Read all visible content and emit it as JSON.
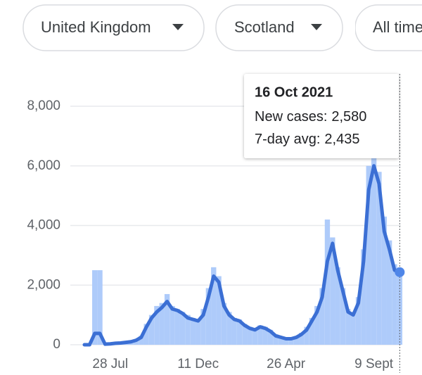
{
  "filters": [
    "United Kingdom",
    "Scotland",
    "All time"
  ],
  "chart_data": {
    "type": "bar-line",
    "tooltip_date": "16 Oct 2021",
    "categories": [
      null,
      null,
      null,
      null,
      null,
      "28 Jul",
      null,
      null,
      null,
      null,
      null,
      null,
      null,
      null,
      null,
      null,
      null,
      null,
      null,
      null,
      null,
      null,
      "11 Dec",
      null,
      null,
      null,
      null,
      null,
      null,
      null,
      null,
      null,
      null,
      null,
      null,
      null,
      null,
      null,
      null,
      "26 Apr",
      null,
      null,
      null,
      null,
      null,
      null,
      null,
      null,
      null,
      null,
      null,
      null,
      null,
      null,
      null,
      null,
      "9 Sept",
      null,
      null,
      null,
      null,
      null
    ],
    "series": [
      {
        "name": "New cases:",
        "kind": "bar",
        "color": "#aecbfa",
        "values": [
          0,
          0,
          2500,
          2500,
          30,
          40,
          60,
          70,
          90,
          120,
          180,
          300,
          700,
          1000,
          1300,
          1400,
          1700,
          1300,
          1200,
          1100,
          1000,
          900,
          850,
          1200,
          1900,
          2600,
          2300,
          1400,
          1100,
          900,
          850,
          700,
          600,
          550,
          650,
          600,
          500,
          350,
          280,
          220,
          230,
          280,
          400,
          600,
          900,
          1300,
          1900,
          4200,
          3600,
          2600,
          1900,
          1200,
          1100,
          1600,
          3200,
          6000,
          6400,
          5800,
          4300,
          3500,
          2700,
          2580
        ],
        "value_labels": [
          null,
          null,
          null,
          null,
          null,
          null,
          null,
          null,
          null,
          null,
          null,
          null,
          null,
          null,
          null,
          null,
          null,
          null,
          null,
          null,
          null,
          null,
          null,
          null,
          null,
          null,
          null,
          null,
          null,
          null,
          null,
          null,
          null,
          null,
          null,
          null,
          null,
          null,
          null,
          null,
          null,
          null,
          null,
          null,
          null,
          null,
          null,
          null,
          null,
          null,
          null,
          null,
          null,
          null,
          null,
          null,
          null,
          null,
          null,
          null,
          null,
          "2,580"
        ]
      },
      {
        "name": "7-day avg:",
        "kind": "line",
        "color": "#3b6fd4",
        "values": [
          0,
          0,
          380,
          380,
          20,
          30,
          50,
          60,
          80,
          100,
          150,
          250,
          600,
          900,
          1100,
          1250,
          1450,
          1200,
          1150,
          1050,
          900,
          850,
          800,
          1000,
          1600,
          2300,
          2100,
          1300,
          1000,
          850,
          800,
          650,
          550,
          500,
          600,
          550,
          450,
          300,
          250,
          200,
          200,
          250,
          350,
          500,
          800,
          1100,
          1600,
          2800,
          3400,
          2500,
          1800,
          1100,
          1000,
          1400,
          2800,
          5200,
          6000,
          5400,
          3800,
          3200,
          2500,
          2435
        ],
        "value_labels": [
          null,
          null,
          null,
          null,
          null,
          null,
          null,
          null,
          null,
          null,
          null,
          null,
          null,
          null,
          null,
          null,
          null,
          null,
          null,
          null,
          null,
          null,
          null,
          null,
          null,
          null,
          null,
          null,
          null,
          null,
          null,
          null,
          null,
          null,
          null,
          null,
          null,
          null,
          null,
          null,
          null,
          null,
          null,
          null,
          null,
          null,
          null,
          null,
          null,
          null,
          null,
          null,
          null,
          null,
          null,
          null,
          null,
          null,
          null,
          null,
          null,
          "2,435"
        ]
      }
    ],
    "ylim": [
      0,
      8000
    ],
    "yticks": [
      0,
      {
        "value": 2000,
        "label": "2,000"
      },
      {
        "value": 4000,
        "label": "4,000"
      },
      {
        "value": 6000,
        "label": "6,000"
      },
      {
        "value": 8000,
        "label": "8,000"
      }
    ],
    "grid": true
  }
}
